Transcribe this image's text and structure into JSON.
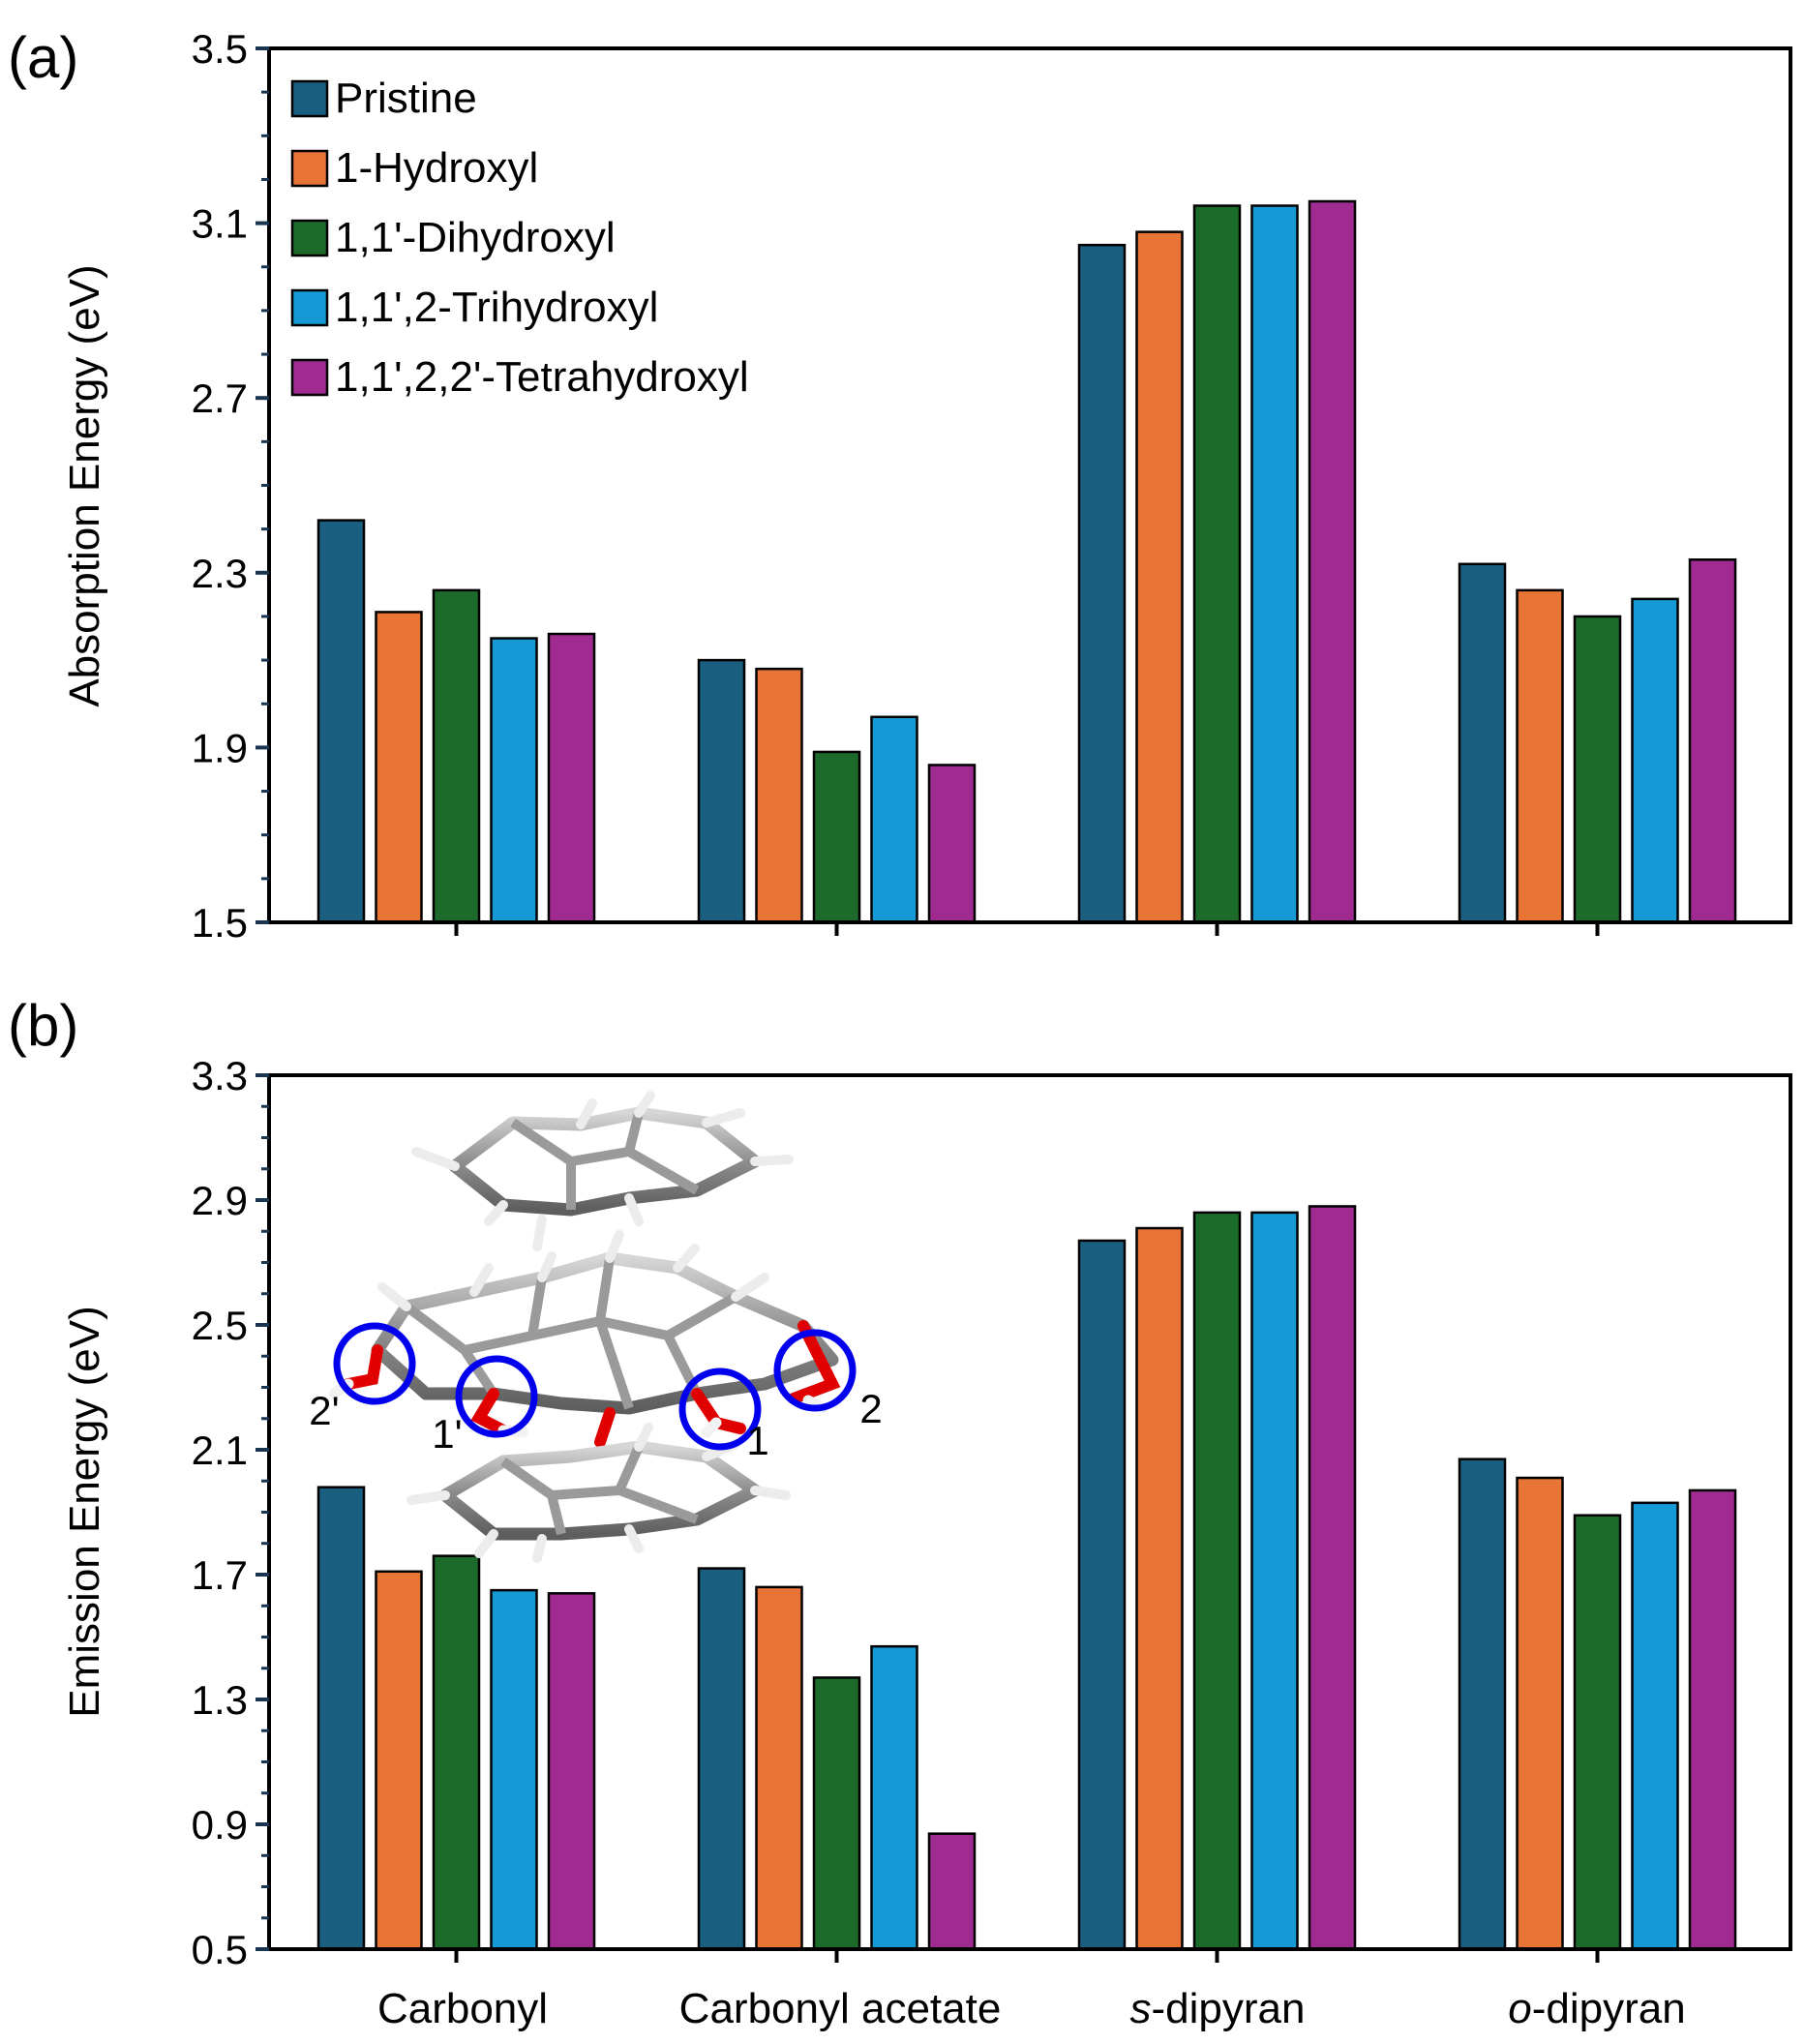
{
  "chart_data": [
    {
      "panel": "(a)",
      "type": "bar",
      "ylabel": "Absorption Energy (eV)",
      "xlabel": "",
      "ylim": [
        1.5,
        3.5
      ],
      "yticks": [
        1.5,
        1.9,
        2.3,
        2.7,
        3.1,
        3.5
      ],
      "ytick_labels": [
        "1.5",
        "1.9",
        "2.3",
        "2.7",
        "3.1",
        "3.5"
      ],
      "legend_position": "top-left",
      "categories": [
        "Carbonyl",
        "Carbonyl acetate",
        "s-dipyran",
        "o-dipyran"
      ],
      "series": [
        {
          "name": "Pristine",
          "values": [
            2.42,
            2.1,
            3.05,
            2.32
          ]
        },
        {
          "name": "1-Hydroxyl",
          "values": [
            2.21,
            2.08,
            3.08,
            2.26
          ]
        },
        {
          "name": "1,1'-Dihydroxyl",
          "values": [
            2.26,
            1.89,
            3.14,
            2.2
          ]
        },
        {
          "name": "1,1',2-Trihydroxyl",
          "values": [
            2.15,
            1.97,
            3.14,
            2.24
          ]
        },
        {
          "name": "1,1',2,2'-Tetrahydroxyl",
          "values": [
            2.16,
            1.86,
            3.15,
            2.33
          ]
        }
      ]
    },
    {
      "panel": "(b)",
      "type": "bar",
      "ylabel": "Emission Energy (eV)",
      "xlabel": "",
      "ylim": [
        0.5,
        3.3
      ],
      "yticks": [
        0.5,
        0.9,
        1.3,
        1.7,
        2.1,
        2.5,
        2.9,
        3.3
      ],
      "ytick_labels": [
        "0.5",
        "0.9",
        "1.3",
        "1.7",
        "2.1",
        "2.5",
        "2.9",
        "3.3"
      ],
      "categories": [
        "Carbonyl",
        "Carbonyl acetate",
        "s-dipyran",
        "o-dipyran"
      ],
      "category_labels": [
        {
          "prefix": "",
          "main": "Carbonyl"
        },
        {
          "prefix": "",
          "main": "Carbonyl acetate"
        },
        {
          "prefix": "s",
          "main": "-dipyran"
        },
        {
          "prefix": "o",
          "main": "-dipyran"
        }
      ],
      "series": [
        {
          "name": "Pristine",
          "values": [
            1.98,
            1.72,
            2.77,
            2.07
          ]
        },
        {
          "name": "1-Hydroxyl",
          "values": [
            1.71,
            1.66,
            2.81,
            2.01
          ]
        },
        {
          "name": "1,1'-Dihydroxyl",
          "values": [
            1.76,
            1.37,
            2.86,
            1.89
          ]
        },
        {
          "name": "1,1',2-Trihydroxyl",
          "values": [
            1.65,
            1.47,
            2.86,
            1.93
          ]
        },
        {
          "name": "1,1',2,2'-Tetrahydroxyl",
          "values": [
            1.64,
            0.87,
            2.88,
            1.97
          ]
        }
      ],
      "inset": {
        "description": "molecular structure",
        "site_labels": [
          "2'",
          "1'",
          "1",
          "2"
        ]
      }
    }
  ],
  "colors": {
    "series": [
      "#1a5e80",
      "#e87535",
      "#1d6b2a",
      "#169ad6",
      "#9f2b91"
    ],
    "atom_red": "#e00000",
    "circle": "#0000ee",
    "carbon": "#8c8c8c",
    "hydrogen": "#f0f0f0"
  }
}
